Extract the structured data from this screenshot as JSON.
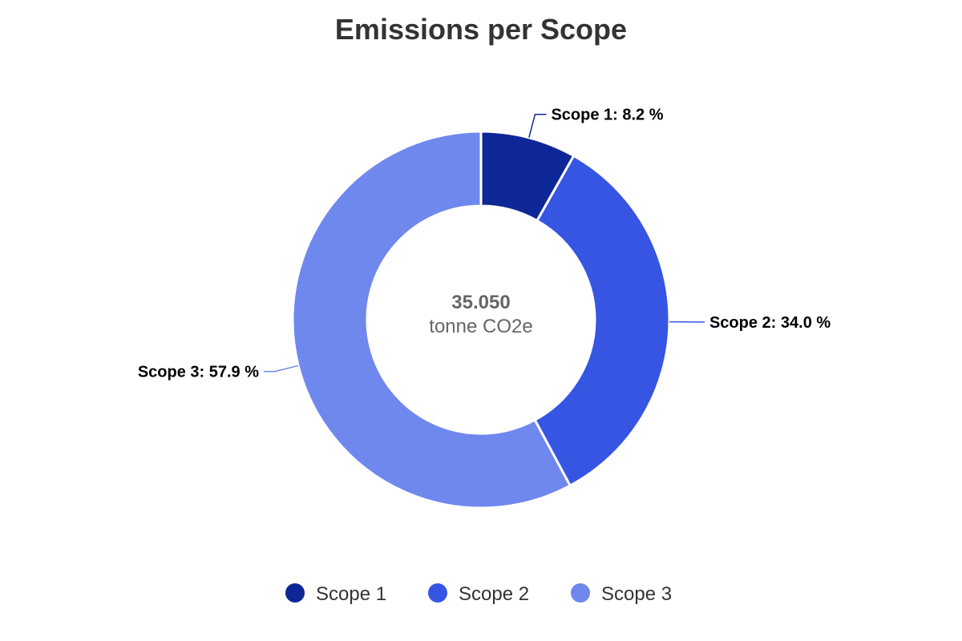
{
  "chart_data": {
    "type": "pie",
    "title": "Emissions per Scope",
    "center": {
      "value": "35.050",
      "unit": "tonne CO2e"
    },
    "categories": [
      "Scope 1",
      "Scope 2",
      "Scope 3"
    ],
    "values": [
      8.2,
      34.0,
      57.9
    ],
    "value_suffix": " %",
    "colors": [
      "#0e2796",
      "#3755e3",
      "#6f88ee"
    ],
    "legend_position": "bottom",
    "donut": true
  }
}
